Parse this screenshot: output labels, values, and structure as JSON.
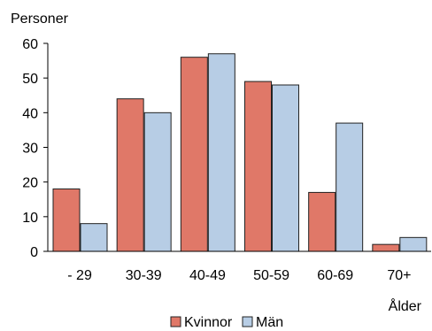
{
  "chart_data": {
    "type": "bar",
    "ylabel": "Personer",
    "xlabel": "Ålder",
    "categories": [
      "- 29",
      "30-39",
      "40-49",
      "50-59",
      "60-69",
      "70+"
    ],
    "series": [
      {
        "name": "Kvinnor",
        "values": [
          18,
          44,
          56,
          49,
          17,
          2
        ],
        "color": "#E07868"
      },
      {
        "name": "Män",
        "values": [
          8,
          40,
          57,
          48,
          37,
          4
        ],
        "color": "#B7CDE5"
      }
    ],
    "ylim": [
      0,
      60
    ],
    "yticks": [
      0,
      10,
      20,
      30,
      40,
      50,
      60
    ],
    "grid": false,
    "legend": "bottom"
  }
}
